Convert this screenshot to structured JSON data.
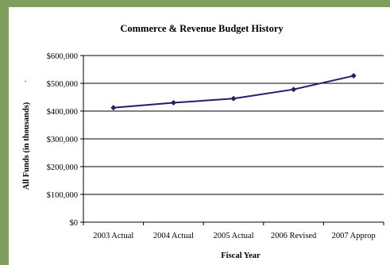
{
  "chart_data": {
    "type": "line",
    "title": "Commerce & Revenue Budget History",
    "xlabel": "Fiscal Year",
    "ylabel": "All Funds (in thousands)",
    "categories": [
      "2003 Actual",
      "2004 Actual",
      "2005 Actual",
      "2006 Revised",
      "2007 Approp"
    ],
    "series": [
      {
        "values": [
          412000,
          430000,
          445000,
          478000,
          527000
        ],
        "color": "#1f1f6b"
      }
    ],
    "ylim": [
      0,
      600000
    ],
    "yticks": [
      0,
      100000,
      200000,
      300000,
      400000,
      500000,
      600000
    ],
    "ytick_labels": [
      "$0",
      "$100,000",
      "$200,000",
      "$300,000",
      "$400,000",
      "$500,000",
      "$600,000"
    ],
    "ylabel_marker": ".",
    "grid": "horizontal",
    "legend": "none",
    "marker": "diamond"
  }
}
